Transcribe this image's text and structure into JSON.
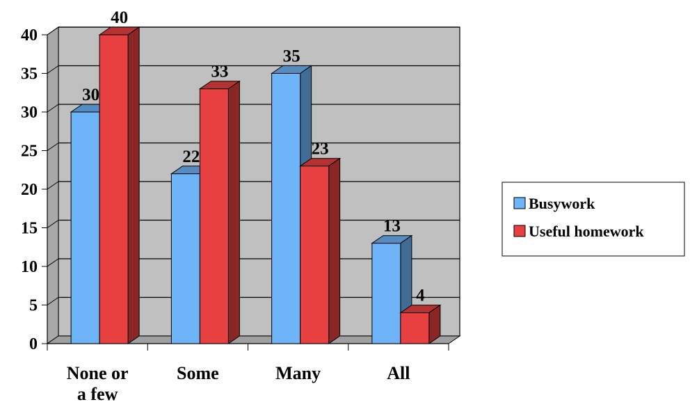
{
  "chart_data": {
    "type": "bar",
    "style": "3d-clustered-column",
    "categories": [
      [
        "None or",
        "a few"
      ],
      [
        "Some"
      ],
      [
        "Many"
      ],
      [
        "All"
      ]
    ],
    "series": [
      {
        "name": "Busywork",
        "values": [
          30,
          22,
          35,
          13
        ],
        "color": "#6DB4F8"
      },
      {
        "name": "Useful homework",
        "values": [
          40,
          33,
          23,
          4
        ],
        "color": "#E84040"
      }
    ],
    "ylim": [
      0,
      40
    ],
    "yticks": [
      0,
      5,
      10,
      15,
      20,
      25,
      30,
      35,
      40
    ],
    "grid": true,
    "legend_position": "right",
    "data_labels": true,
    "wall_color": "#C0C0C0",
    "floor_color": "#A0A0A0"
  }
}
